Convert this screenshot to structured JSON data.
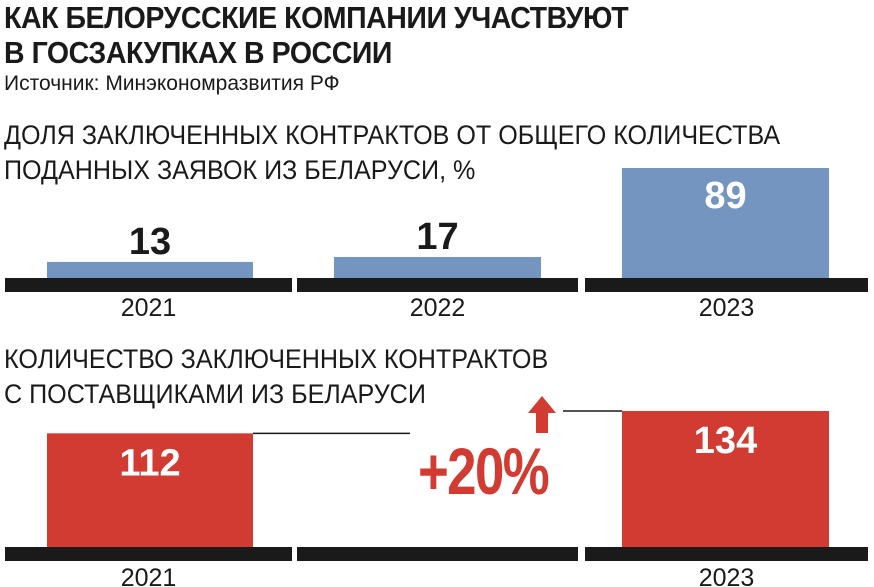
{
  "title_lines": [
    "КАК БЕЛОРУССКИЕ КОМПАНИИ УЧАСТВУЮТ",
    "В ГОСЗАКУПКАХ В РОССИИ"
  ],
  "source": "Источник: Минэкономразвития РФ",
  "colors": {
    "blue": "#7395bf",
    "red": "#d23b32",
    "baseline": "#1a1a1a"
  },
  "chart_data": [
    {
      "type": "bar",
      "title_lines": [
        "ДОЛЯ ЗАКЛЮЧЕННЫХ КОНТРАКТОВ ОТ ОБЩЕГО КОЛИЧЕСТВА",
        "ПОДАННЫХ ЗАЯВОК ИЗ БЕЛАРУСИ, %"
      ],
      "categories": [
        "2021",
        "2022",
        "2023"
      ],
      "values": [
        13,
        17,
        89
      ],
      "data_labels": [
        "13",
        "17",
        "89"
      ],
      "color": "#7395bf"
    },
    {
      "type": "bar",
      "title_lines": [
        "КОЛИЧЕСТВО ЗАКЛЮЧЕННЫХ КОНТРАКТОВ",
        "С ПОСТАВЩИКАМИ ИЗ БЕЛАРУСИ"
      ],
      "categories": [
        "2021",
        "",
        "2023"
      ],
      "values": [
        112,
        null,
        134
      ],
      "data_labels": [
        "112",
        "",
        "134"
      ],
      "color": "#d23b32",
      "annotation": "+20%"
    }
  ]
}
